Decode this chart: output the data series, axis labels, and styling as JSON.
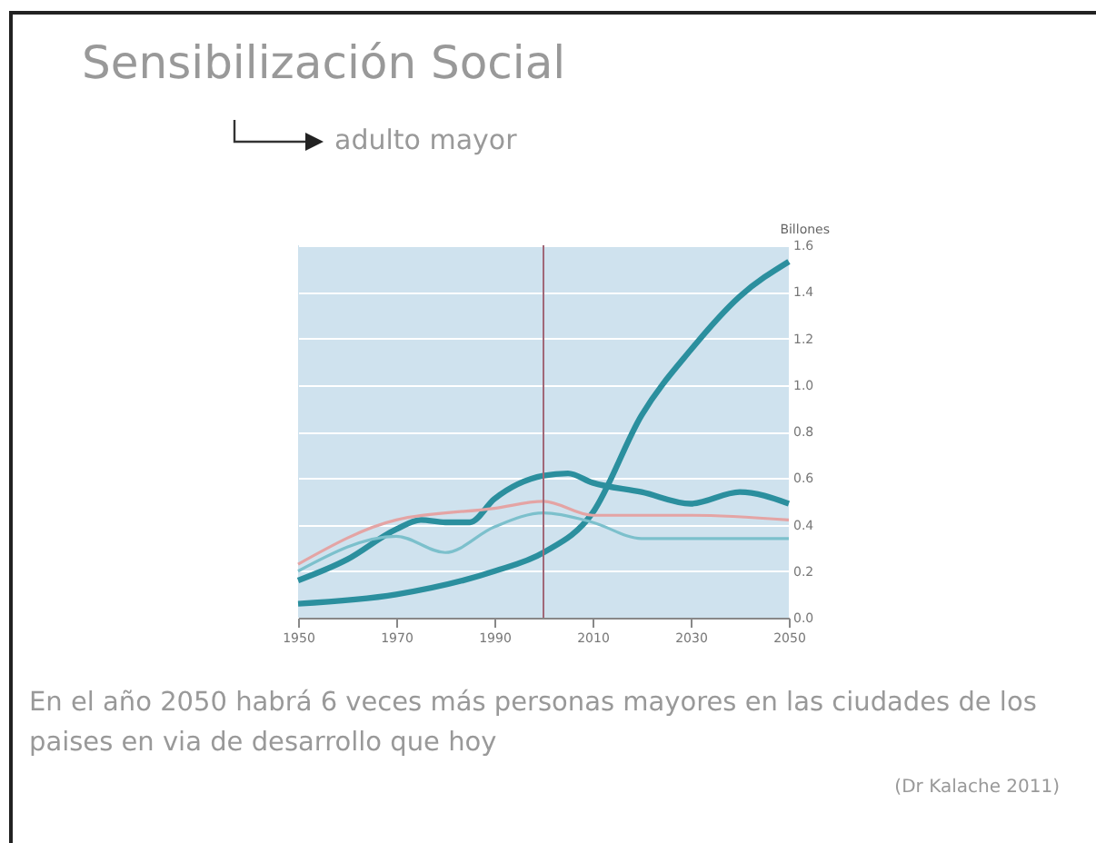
{
  "chart_data": {
    "type": "line",
    "title": "Sensibilización Social",
    "subtitle": "adulto mayor",
    "ylabel": "Billones",
    "annotations": [
      "En el año 2050 habrá 6 veces más personas mayores en las ciudades de los paises en via de desarrollo que hoy",
      "(Dr Kalache 2011)"
    ],
    "series": [
      {
        "color": "#2b8f9e",
        "x": [
          1950,
          1970,
          1990,
          2000,
          2010,
          2020,
          2030,
          2040,
          2050
        ],
        "values": [
          0.06,
          0.1,
          0.2,
          0.28,
          0.45,
          0.87,
          1.15,
          1.38,
          1.53
        ]
      },
      {
        "color": "#2b8f9e",
        "x": [
          1950,
          1960,
          1970,
          1975,
          1980,
          1985,
          1990,
          2000,
          2005,
          2010,
          2020,
          2030,
          2040,
          2050
        ],
        "values": [
          0.16,
          0.25,
          0.38,
          0.42,
          0.41,
          0.41,
          0.51,
          0.61,
          0.62,
          0.58,
          0.54,
          0.49,
          0.54,
          0.49
        ]
      },
      {
        "color": "#7cc0cc",
        "x": [
          1950,
          1970,
          1980,
          1990,
          2000,
          2010,
          2020,
          2030,
          2050
        ],
        "values": [
          0.2,
          0.35,
          0.28,
          0.39,
          0.45,
          0.41,
          0.34,
          0.34,
          0.34
        ]
      },
      {
        "color": "#e4a4a4",
        "x": [
          1950,
          1970,
          1990,
          2000,
          2010,
          2030,
          2050
        ],
        "values": [
          0.23,
          0.42,
          0.47,
          0.5,
          0.44,
          0.44,
          0.42
        ]
      }
    ],
    "xlim": [
      1950,
      2050
    ],
    "xticks": [
      1950,
      1970,
      1990,
      2010,
      2030,
      2050
    ],
    "ylim": [
      0,
      1.6
    ],
    "yticks": [
      {
        "value": 0,
        "label": "0.0"
      },
      0.2,
      0.4,
      0.6,
      0.8,
      {
        "value": 1,
        "label": "1.0"
      },
      1.2,
      1.4,
      1.6
    ],
    "grid": "y",
    "ref_lines": [
      {
        "axis": "x",
        "value": 2000,
        "color": "#a06878"
      }
    ]
  }
}
